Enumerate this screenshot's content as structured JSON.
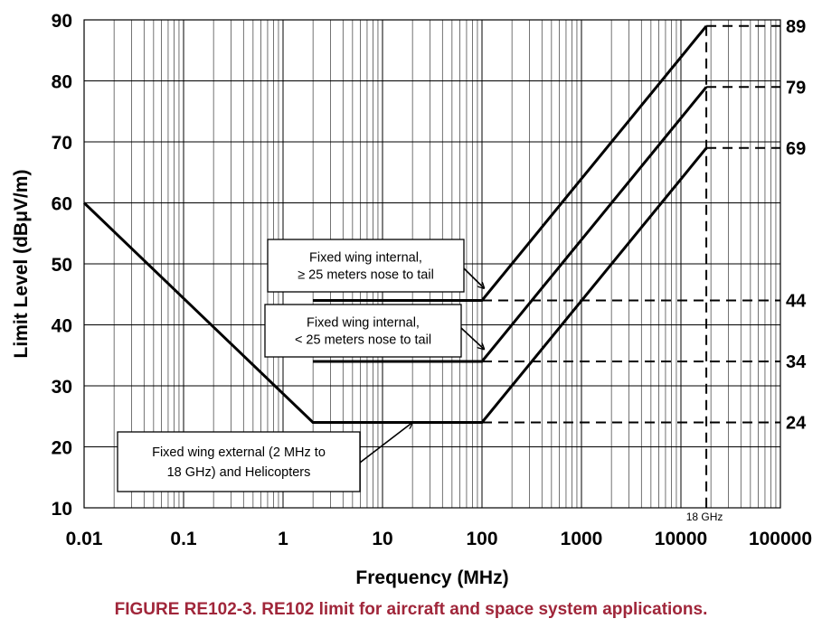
{
  "caption": "FIGURE RE102-3.  RE102 limit for aircraft and space system applications.",
  "chart_data": {
    "type": "line",
    "title": "",
    "xlabel": "Frequency (MHz)",
    "ylabel": "Limit Level (dBμV/m)",
    "xscale": "log",
    "xlim": [
      0.01,
      100000
    ],
    "ylim": [
      10,
      90
    ],
    "grid": true,
    "x_tick_labels": [
      "0.01",
      "0.1",
      "1",
      "10",
      "100",
      "1000",
      "10000",
      "100000"
    ],
    "x_ticks": [
      0.01,
      0.1,
      1,
      10,
      100,
      1000,
      10000,
      100000
    ],
    "y_tick_labels": [
      "10",
      "20",
      "30",
      "40",
      "50",
      "60",
      "70",
      "80",
      "90"
    ],
    "y_ticks": [
      10,
      20,
      30,
      40,
      50,
      60,
      70,
      80,
      90
    ],
    "series": [
      {
        "x": [
          0.01,
          2,
          100,
          18000
        ],
        "y": [
          60,
          24,
          24,
          69
        ]
      },
      {
        "x": [
          2,
          100,
          18000
        ],
        "y": [
          34,
          34,
          79
        ]
      },
      {
        "x": [
          2,
          100,
          18000
        ],
        "y": [
          44,
          44,
          89
        ]
      }
    ],
    "reference_lines": [
      {
        "y": 89,
        "from_x": 18000,
        "label": "89"
      },
      {
        "y": 79,
        "from_x": 18000,
        "label": "79"
      },
      {
        "y": 69,
        "from_x": 18000,
        "label": "69"
      },
      {
        "y": 44,
        "from_x": 100,
        "label": "44"
      },
      {
        "y": 34,
        "from_x": 100,
        "label": "34"
      },
      {
        "y": 24,
        "from_x": 100,
        "label": "24"
      }
    ],
    "vertical_marker": {
      "x": 18000,
      "label": "18 GHz"
    },
    "annotations": [
      {
        "lines": [
          "Fixed wing internal,",
          "≥ 25 meters nose to tail"
        ],
        "target_x": 105,
        "target_y": 46
      },
      {
        "lines": [
          "Fixed wing internal,",
          "< 25 meters nose to tail"
        ],
        "target_x": 105,
        "target_y": 36
      },
      {
        "lines": [
          "Fixed wing external (2 MHz to",
          "18 GHz) and Helicopters"
        ],
        "target_x": 20,
        "target_y": 24
      }
    ]
  }
}
